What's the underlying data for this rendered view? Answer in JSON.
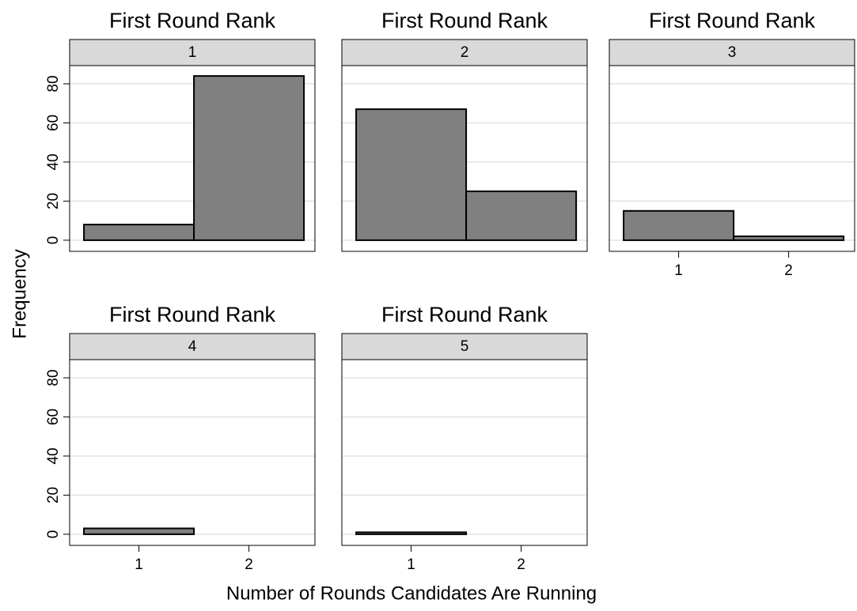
{
  "chart_data": [
    {
      "type": "histogram",
      "title": "First Round Rank",
      "panel": "1",
      "bins": [
        0.5,
        1.5,
        2.5
      ],
      "values": [
        8,
        84
      ],
      "color": "#808080",
      "xlim": [
        0.37,
        2.6
      ],
      "ylim": [
        -5.7,
        89.3
      ],
      "yticks": [
        0,
        20,
        40,
        60,
        80
      ],
      "xticks": [],
      "grid": true,
      "ytick_labels": true
    },
    {
      "type": "histogram",
      "title": "First Round Rank",
      "panel": "2",
      "bins": [
        0.5,
        1.5,
        2.5
      ],
      "values": [
        67,
        25
      ],
      "color": "#808080",
      "xlim": [
        0.37,
        2.6
      ],
      "ylim": [
        -5.7,
        89.3
      ],
      "yticks": [
        0,
        20,
        40,
        60,
        80
      ],
      "xticks": [],
      "grid": true,
      "ytick_labels": false
    },
    {
      "type": "histogram",
      "title": "First Round Rank",
      "panel": "3",
      "bins": [
        0.5,
        1.5,
        2.5
      ],
      "values": [
        15,
        2
      ],
      "color": "#808080",
      "xlim": [
        0.37,
        2.6
      ],
      "ylim": [
        -5.7,
        89.3
      ],
      "yticks": [
        0,
        20,
        40,
        60,
        80
      ],
      "xticks": [
        1,
        2
      ],
      "grid": true,
      "ytick_labels": false
    },
    {
      "type": "histogram",
      "title": "First Round Rank",
      "panel": "4",
      "bins": [
        0.5,
        1.5,
        2.5
      ],
      "values": [
        3,
        0
      ],
      "color": "#808080",
      "xlim": [
        0.37,
        2.6
      ],
      "ylim": [
        -5.7,
        89.3
      ],
      "yticks": [
        0,
        20,
        40,
        60,
        80
      ],
      "xticks": [
        1,
        2
      ],
      "grid": true,
      "ytick_labels": true
    },
    {
      "type": "histogram",
      "title": "First Round Rank",
      "panel": "5",
      "bins": [
        0.5,
        1.5,
        2.5
      ],
      "values": [
        1,
        0
      ],
      "color": "#808080",
      "xlim": [
        0.37,
        2.6
      ],
      "ylim": [
        -5.7,
        89.3
      ],
      "yticks": [
        0,
        20,
        40,
        60,
        80
      ],
      "xticks": [
        1,
        2
      ],
      "grid": true,
      "ytick_labels": false
    }
  ],
  "xlabel": "Number of Rounds Candidates Are Running",
  "ylabel": "Frequency"
}
